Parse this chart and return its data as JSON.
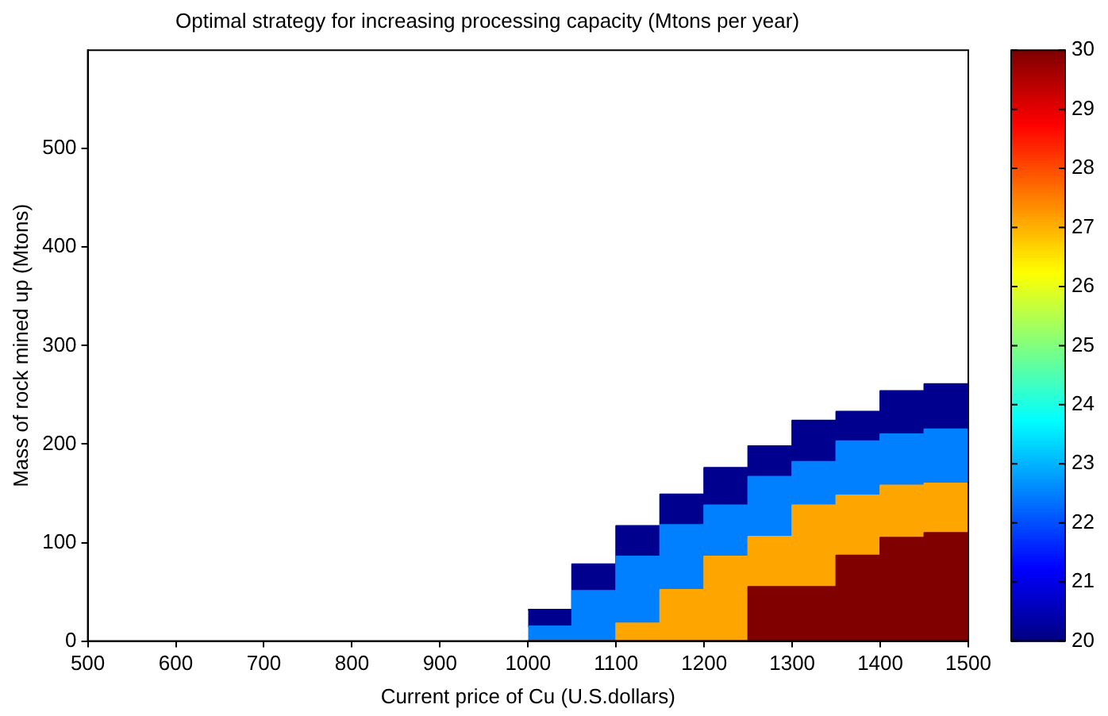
{
  "chart_data": {
    "type": "area",
    "title": "Optimal strategy for increasing processing capacity (Mtons per year)",
    "xlabel": "Current price of Cu (U.S.dollars)",
    "ylabel": "Mass of rock mined up (Mtons)",
    "stacked": true,
    "x": [
      1000,
      1050,
      1050,
      1100,
      1100,
      1150,
      1150,
      1200,
      1200,
      1250,
      1250,
      1300,
      1300,
      1350,
      1350,
      1400,
      1400,
      1450,
      1450,
      1500
    ],
    "series": [
      {
        "color": "#800000",
        "values": [
          0,
          0,
          0,
          0,
          0,
          0,
          0,
          0,
          0,
          0,
          55,
          55,
          55,
          55,
          87,
          87,
          105,
          105,
          110,
          110
        ]
      },
      {
        "color": "#ffa500",
        "values": [
          0,
          0,
          0,
          0,
          18,
          18,
          52,
          52,
          86,
          86,
          51,
          51,
          83,
          83,
          61,
          61,
          53,
          53,
          50,
          50
        ]
      },
      {
        "color": "#0080ff",
        "values": [
          15,
          15,
          51,
          51,
          68,
          68,
          66,
          66,
          52,
          52,
          61,
          61,
          44,
          44,
          55,
          55,
          52,
          52,
          55,
          55
        ]
      },
      {
        "color": "#00008f",
        "values": [
          17,
          17,
          27,
          27,
          31,
          31,
          31,
          31,
          38,
          38,
          31,
          31,
          42,
          42,
          30,
          30,
          44,
          44,
          46,
          46
        ]
      }
    ],
    "xlim": [
      500,
      1500
    ],
    "xticks": [
      500,
      600,
      700,
      800,
      900,
      1000,
      1100,
      1200,
      1300,
      1400,
      1500
    ],
    "ylim": [
      0,
      600
    ],
    "yticks": [
      0,
      100,
      200,
      300,
      400,
      500
    ],
    "clim": [
      20,
      30
    ],
    "cticks": [
      20,
      21,
      22,
      23,
      24,
      25,
      26,
      27,
      28,
      29,
      30
    ],
    "grid": false,
    "legend": false
  }
}
